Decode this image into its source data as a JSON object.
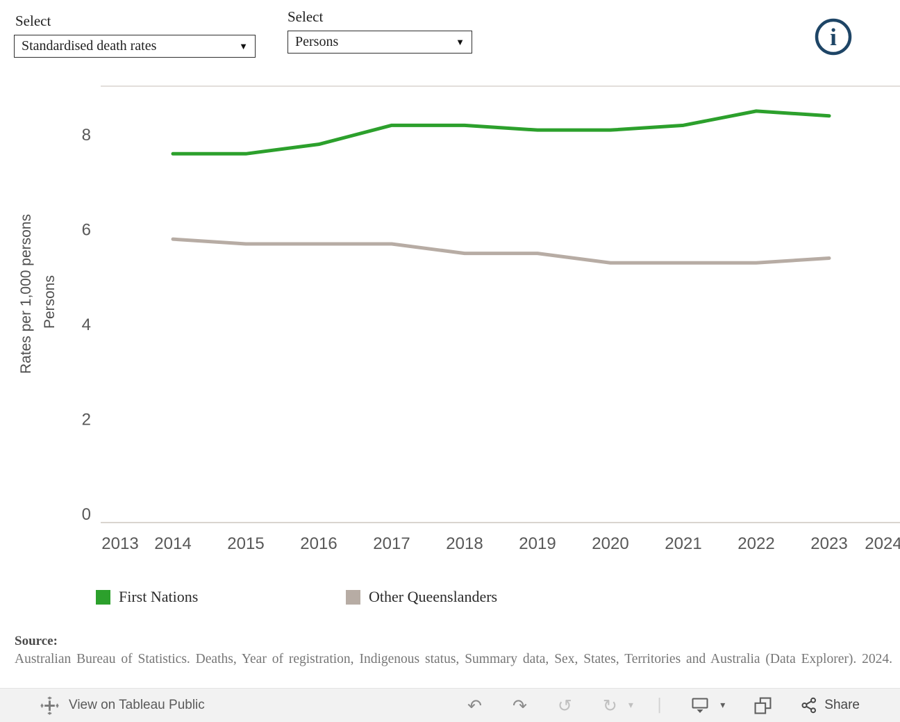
{
  "controls": {
    "measure_select": {
      "label": "Select",
      "value": "Standardised death rates"
    },
    "sex_select": {
      "label": "Select",
      "value": "Persons"
    }
  },
  "info_icon": {
    "glyph": "i",
    "color": "#1e4566"
  },
  "chart_data": {
    "type": "line",
    "title": "",
    "y_axis_title_outer": "Rates per 1,000 persons",
    "y_axis_title_inner": "Persons",
    "x_ticks": [
      2013,
      2014,
      2015,
      2016,
      2017,
      2018,
      2019,
      2020,
      2021,
      2022,
      2023,
      2024
    ],
    "y_ticks": [
      0,
      2,
      4,
      6,
      8
    ],
    "xlim": [
      2013,
      2024
    ],
    "ylim": [
      0,
      9
    ],
    "grid": false,
    "legend_position": "bottom",
    "x": [
      2014,
      2015,
      2016,
      2017,
      2018,
      2019,
      2020,
      2021,
      2022,
      2023
    ],
    "series": [
      {
        "name": "First Nations",
        "color": "#2ca02c",
        "values": [
          7.6,
          7.6,
          7.8,
          8.2,
          8.2,
          8.1,
          8.1,
          8.2,
          8.5,
          8.4
        ]
      },
      {
        "name": "Other Queenslanders",
        "color": "#b7aca4",
        "values": [
          5.8,
          5.7,
          5.7,
          5.7,
          5.5,
          5.5,
          5.3,
          5.3,
          5.3,
          5.4
        ]
      }
    ]
  },
  "source": {
    "label": "Source:",
    "text": "Australian Bureau of Statistics. Deaths, Year of registration, Indigenous status, Summary data, Sex, States, Territories and Australia (Data Explorer). 2024."
  },
  "toolbar": {
    "view_label": "View on Tableau Public",
    "share_label": "Share"
  },
  "icons": {
    "dropdown": "▼",
    "undo": "↶",
    "redo": "↷",
    "reset": "↺",
    "refresh": "↻",
    "caret": "▾",
    "separator": "|"
  }
}
